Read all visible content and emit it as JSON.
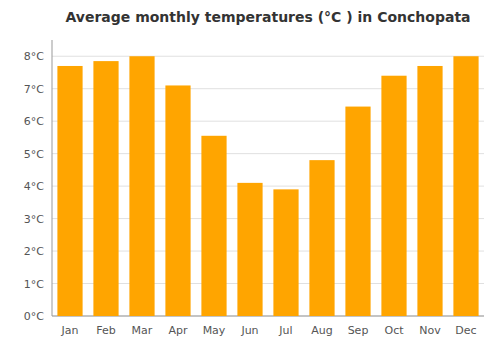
{
  "chart_data": {
    "type": "bar",
    "title": "Average monthly temperatures (°C ) in Conchopata",
    "categories": [
      "Jan",
      "Feb",
      "Mar",
      "Apr",
      "May",
      "Jun",
      "Jul",
      "Aug",
      "Sep",
      "Oct",
      "Nov",
      "Dec"
    ],
    "values": [
      7.7,
      7.85,
      8.0,
      7.1,
      5.55,
      4.1,
      3.9,
      4.8,
      6.45,
      7.4,
      7.7,
      8.0
    ],
    "color": "#FFA500",
    "ylim": [
      0,
      8.5
    ],
    "yticks": [
      {
        "value": 0,
        "label": "0°C"
      },
      {
        "value": 1,
        "label": "1°C"
      },
      {
        "value": 2,
        "label": "2°C"
      },
      {
        "value": 3,
        "label": "3°C"
      },
      {
        "value": 4,
        "label": "4°C"
      },
      {
        "value": 5,
        "label": "5°C"
      },
      {
        "value": 6,
        "label": "6°C"
      },
      {
        "value": 7,
        "label": "7°C"
      },
      {
        "value": 8,
        "label": "8°C"
      }
    ],
    "grid": true
  }
}
